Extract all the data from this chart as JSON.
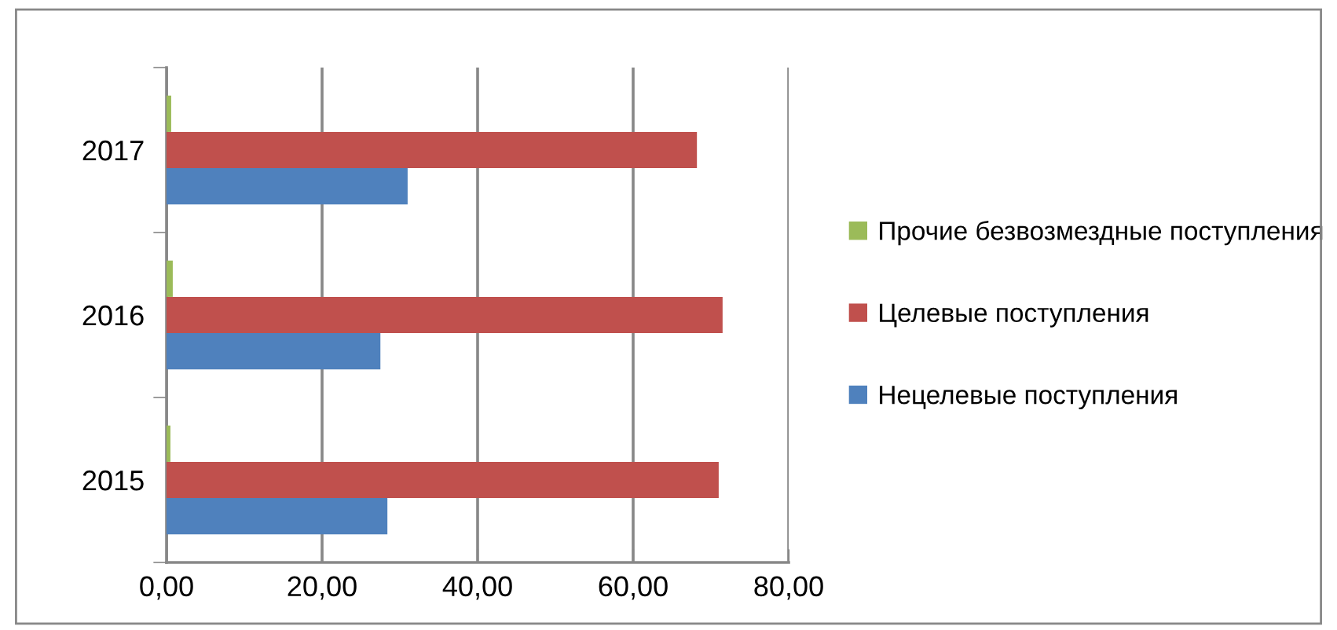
{
  "chart_data": {
    "type": "bar",
    "orientation": "horizontal",
    "categories": [
      "2017",
      "2016",
      "2015"
    ],
    "series": [
      {
        "name": "Нецелевые поступления",
        "color": "#4f81bd",
        "values": [
          31.0,
          27.5,
          28.4
        ]
      },
      {
        "name": "Целевые поступления",
        "color": "#c0504d",
        "values": [
          68.2,
          71.5,
          71.0
        ]
      },
      {
        "name": "Прочие безвозмездные поступления",
        "color": "#9bbb59",
        "values": [
          0.6,
          0.8,
          0.5
        ]
      }
    ],
    "xlim": [
      0,
      80
    ],
    "xticks": [
      {
        "value": 0,
        "label": "0,00"
      },
      {
        "value": 20,
        "label": "20,00"
      },
      {
        "value": 40,
        "label": "40,00"
      },
      {
        "value": 60,
        "label": "60,00"
      },
      {
        "value": 80,
        "label": "80,00"
      }
    ],
    "grid": "x",
    "legend": "right"
  }
}
